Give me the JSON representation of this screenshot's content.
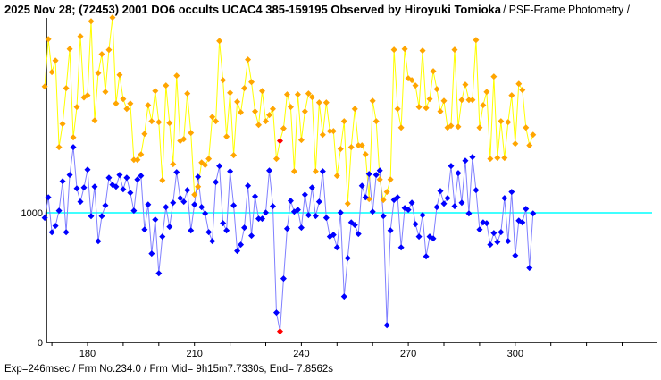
{
  "title": {
    "main": "2025 Nov 28; (72453) 2001 DO6 occults UCAC4 385-159195 Observed by Hiroyuki Tomioka",
    "suffix": " / PSF-Frame Photometry /"
  },
  "footer": "Exp=246msec / Frm No.234.0 / Frm Mid= 9h15m7.7330s,  End= 7.8562s",
  "colors": {
    "reference_line": "#00ffff",
    "comparison_line": "#ffff00",
    "comparison_point": "#ffa500",
    "target_line": "#8080ff",
    "target_point": "#0000ff",
    "highlight": "#ff0000"
  },
  "chart_data": {
    "type": "line",
    "title": "2025 Nov 28; (72453) 2001 DO6 occults UCAC4 385-159195 Observed by Hiroyuki Tomioka / PSF-Frame Photometry /",
    "xlabel": "",
    "ylabel": "",
    "xlim": [
      168,
      339
    ],
    "ylim": [
      0,
      2500
    ],
    "x_ticks": [
      170,
      180,
      190,
      200,
      210,
      220,
      230,
      240,
      250,
      260,
      270,
      280,
      290,
      300,
      310,
      320,
      330
    ],
    "x_tick_labels": [
      "180",
      "210",
      "240",
      "270",
      "300"
    ],
    "x_tick_label_values": [
      180,
      210,
      240,
      270,
      300
    ],
    "y_tick_labels": [
      "0",
      "1000"
    ],
    "y_tick_label_values": [
      0,
      1000
    ],
    "reference_level": 1000,
    "highlight_frame": 234,
    "x_start": 168,
    "series": [
      {
        "name": "comparison",
        "values": [
          1974,
          2340,
          2085,
          2174,
          1506,
          1685,
          1961,
          2264,
          1581,
          1816,
          2361,
          1890,
          1906,
          2478,
          1712,
          2078,
          2223,
          1933,
          2257,
          2506,
          1843,
          2064,
          1878,
          1802,
          1843,
          1409,
          1409,
          1450,
          1609,
          1830,
          1706,
          1940,
          1699,
          1251,
          1982,
          1692,
          1375,
          2058,
          1554,
          1568,
          1920,
          1616,
          1140,
          1202,
          1388,
          1368,
          1416,
          1740,
          1706,
          2326,
          2023,
          1588,
          1926,
          1444,
          1857,
          1775,
          1961,
          2182,
          2009,
          1782,
          1678,
          1940,
          1706,
          1754,
          1802,
          1416,
          1554,
          1651,
          1913,
          1816,
          1320,
          1913,
          1561,
          1782,
          1920,
          1892,
          1320,
          1851,
          1602,
          1851,
          1630,
          1630,
          1285,
          1492,
          1706,
          1071,
          1506,
          1802,
          1520,
          1520,
          1451,
          1106,
          1864,
          1706,
          1257,
          1099,
          1161,
          1257,
          2258,
          1802,
          1657,
          2264,
          2037,
          2023,
          1982,
          1816,
          2251,
          1809,
          1878,
          2092,
          1954,
          1782,
          1864,
          1657,
          1671,
          2258,
          1664,
          1871,
          1989,
          1871,
          1871,
          2333,
          1657,
          1830,
          1933,
          1416,
          2051,
          1423,
          1706,
          1423,
          1699,
          1906,
          1533,
          1995,
          1947,
          1657,
          1520,
          1602
        ]
      },
      {
        "name": "target",
        "values": [
          961,
          1119,
          850,
          899,
          1016,
          1243,
          850,
          1292,
          1506,
          1188,
          1085,
          1195,
          1333,
          974,
          1202,
          781,
          974,
          1057,
          1271,
          1216,
          1202,
          1292,
          1181,
          1271,
          1154,
          1016,
          1257,
          1285,
          871,
          1064,
          685,
          947,
          533,
          816,
          1044,
          892,
          1078,
          1313,
          1113,
          1085,
          1175,
          864,
          1064,
          1278,
          1044,
          995,
          851,
          782,
          1237,
          1361,
          920,
          864,
          1320,
          1057,
          706,
          754,
          885,
          1209,
          823,
          1126,
          954,
          954,
          1002,
          1326,
          1051,
          230,
          85,
          492,
          878,
          1092,
          1009,
          1023,
          885,
          1140,
          982,
          1195,
          975,
          1085,
          1320,
          961,
          816,
          830,
          733,
          1002,
          354,
          651,
          926,
          906,
          837,
          1209,
          1119,
          1299,
          1009,
          1292,
          1326,
          975,
          133,
          864,
          1099,
          1119,
          733,
          1037,
          1023,
          1078,
          913,
          816,
          982,
          664,
          816,
          802,
          1044,
          1168,
          1071,
          1113,
          1361,
          1051,
          1306,
          1078,
          1402,
          995,
          1430,
          1175,
          871,
          926,
          920,
          754,
          844,
          775,
          851,
          1113,
          782,
          1161,
          671,
          940,
          926,
          1030,
          575,
          995
        ]
      }
    ]
  }
}
